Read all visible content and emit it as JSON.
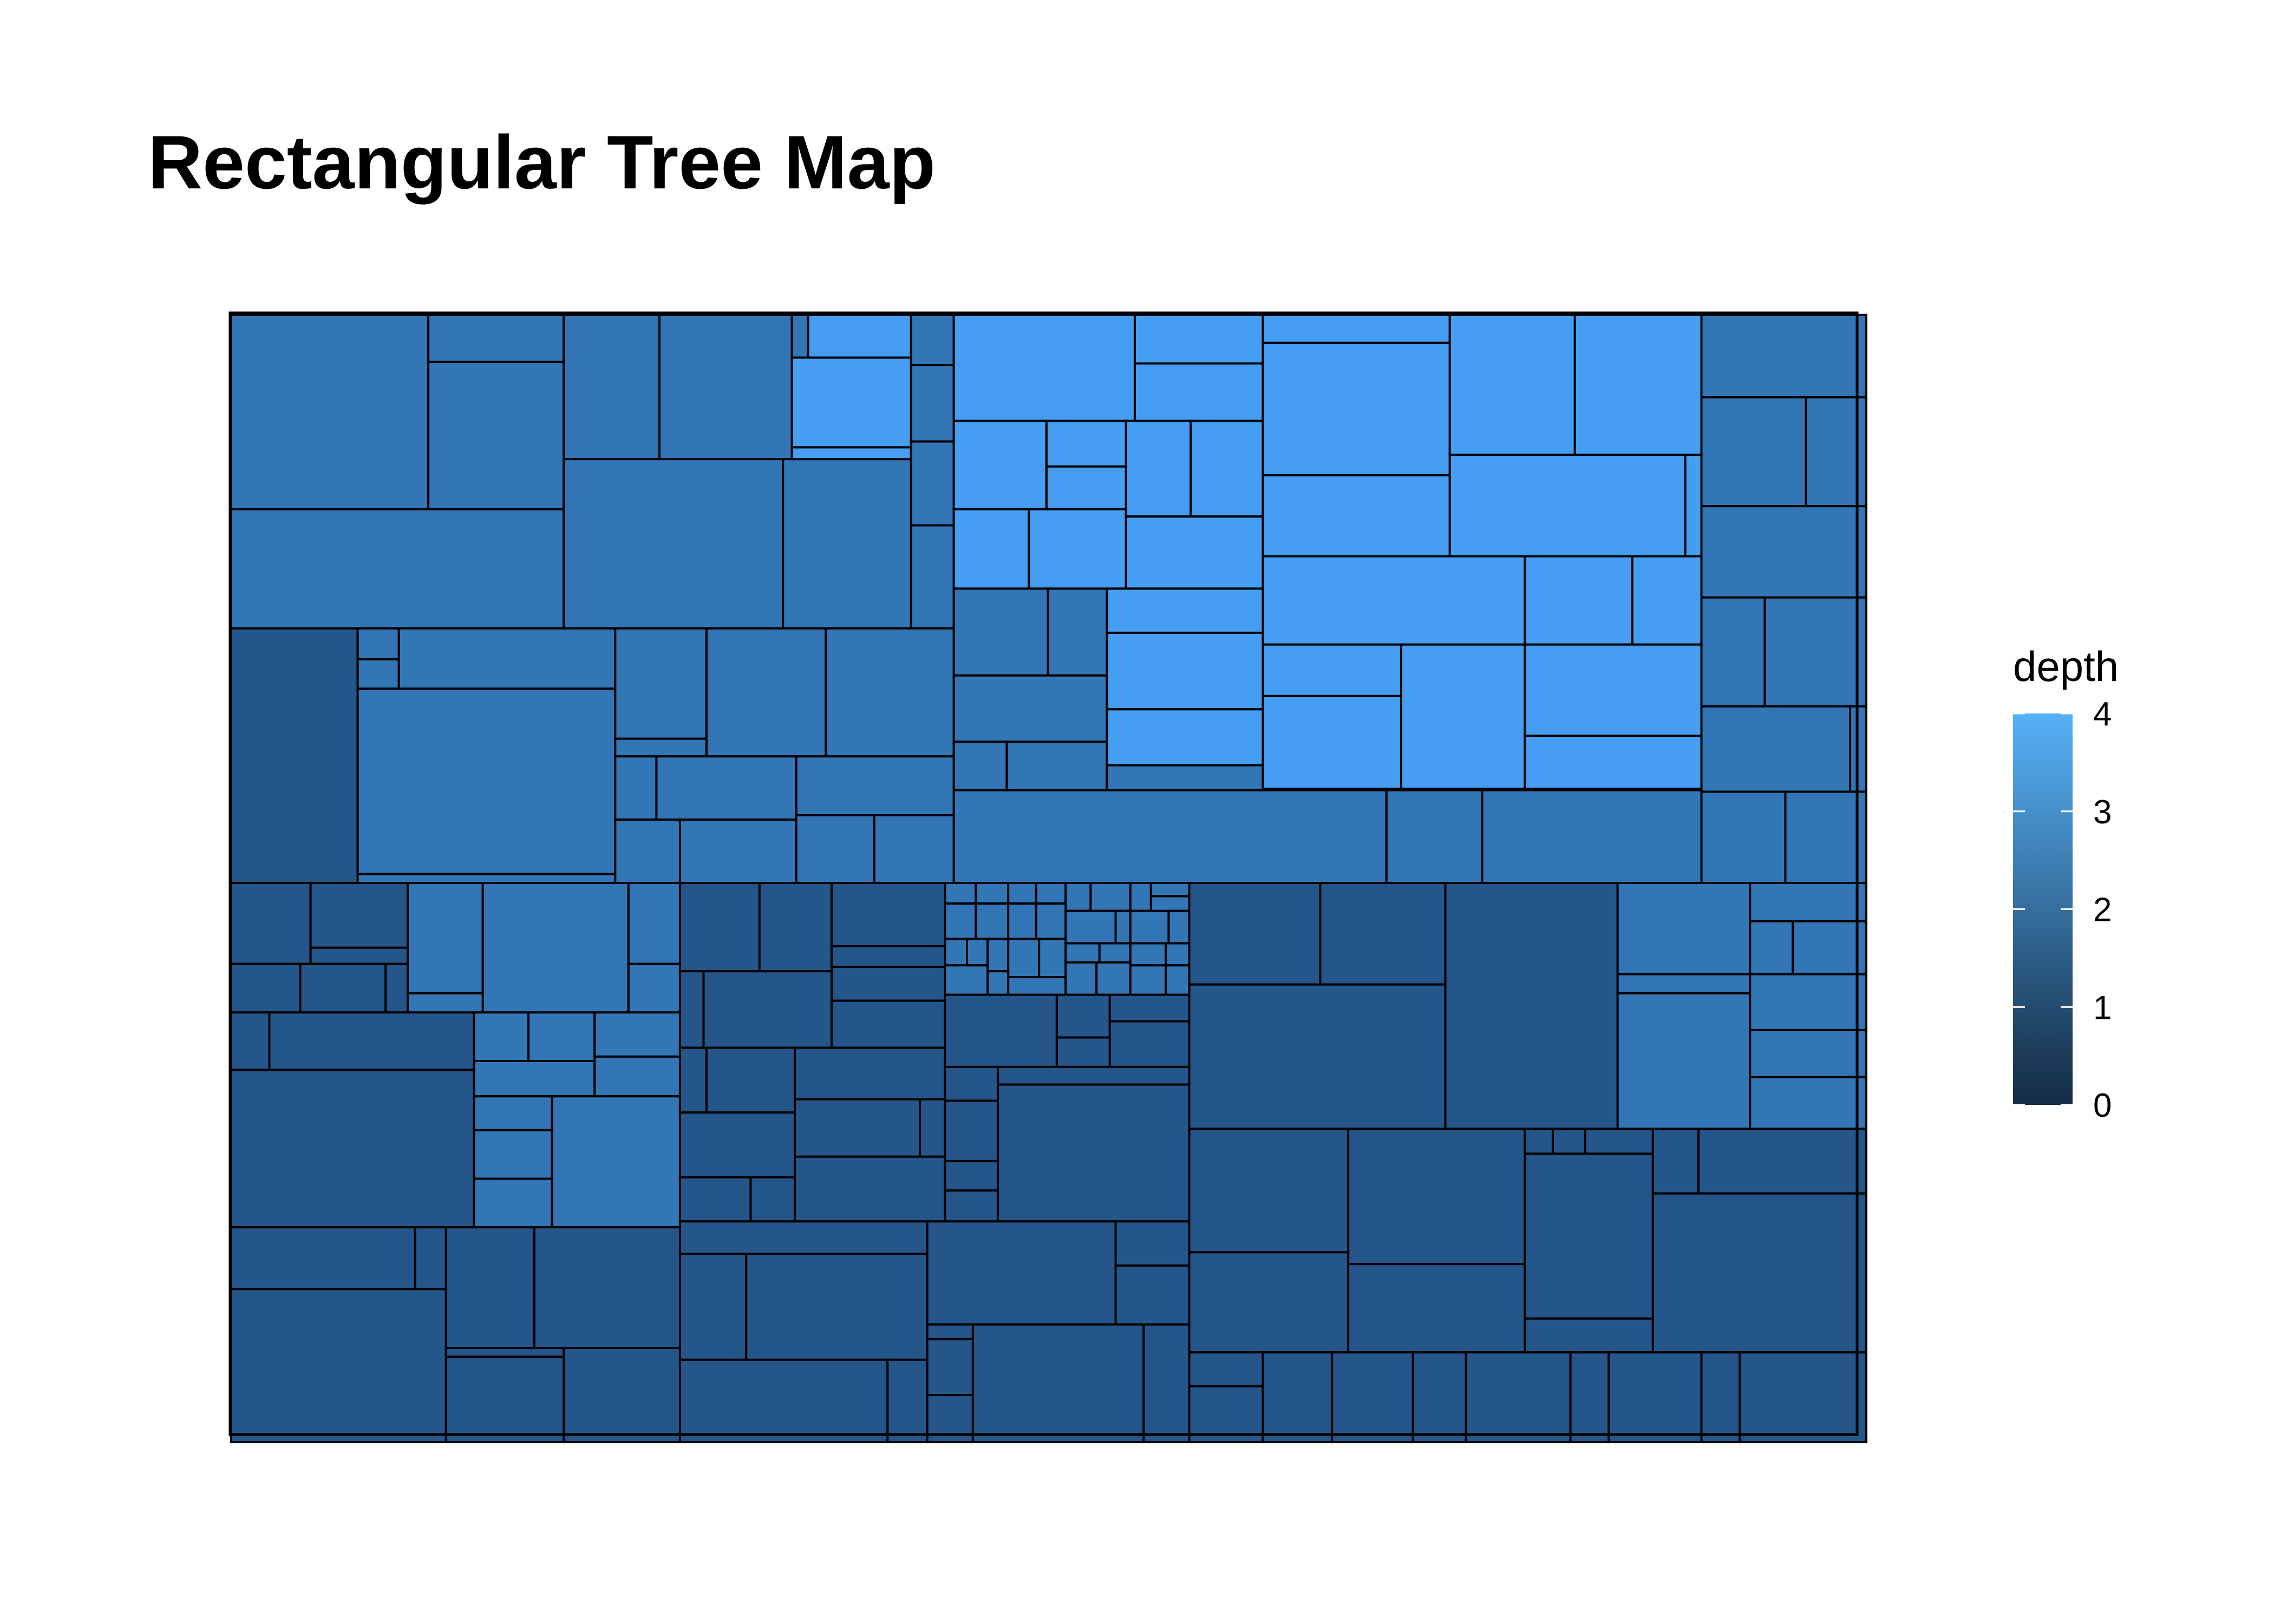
{
  "chart_data": {
    "type": "treemap",
    "title": "Rectangular Tree Map",
    "fill_variable": "depth",
    "legend": {
      "title": "depth",
      "placement": "right",
      "ticks": [
        0,
        1,
        2,
        3,
        4
      ],
      "tick_labels": [
        "0",
        "1",
        "2",
        "3",
        "4"
      ],
      "low_color": "#132B43",
      "high_color": "#56B1F7"
    },
    "colors": {
      "depth_2": "#25568A",
      "depth_3": "#3376B6",
      "depth_4": "#459EF1",
      "border": "#000000"
    },
    "groups": [
      {
        "depth": 3,
        "tiles": 44,
        "position": "top-left"
      },
      {
        "depth": 4,
        "tiles": 36,
        "position": "top-center"
      },
      {
        "depth": 3,
        "tiles": 15,
        "position": "top-right"
      },
      {
        "depth": 3,
        "tiles": 4,
        "position": "bottom-center"
      },
      {
        "depth": 2,
        "tiles": 120,
        "position": "bottom"
      }
    ]
  }
}
